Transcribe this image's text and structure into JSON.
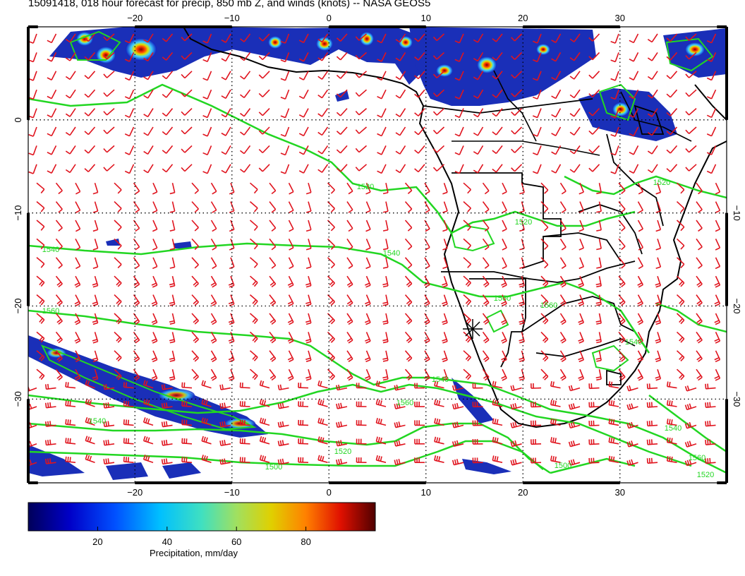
{
  "title": "15091418, 018 hour forecast for precip, 850 mb Z, and winds (knots) -- NASA GEOS5",
  "map": {
    "lon_range": [
      -31,
      41
    ],
    "lat_range": [
      -39,
      10
    ],
    "lon_ticks": [
      "−20",
      "−10",
      "0",
      "10",
      "20",
      "30"
    ],
    "lat_ticks_left": [
      "0",
      "−10",
      "−20",
      "−30"
    ],
    "lat_ticks_right": [
      "−10",
      "−20",
      "−30"
    ],
    "top_tick_labels": [
      "−20",
      "−10",
      "0",
      "10",
      "20",
      "30"
    ],
    "marker": "asterisk-station-marker",
    "contour_color": "#22d622",
    "barb_color": "#e0141e",
    "coast_color": "#000000",
    "contour_labels": [
      "1520",
      "1520",
      "1540",
      "1540",
      "1560",
      "1560",
      "1540",
      "1560",
      "1540",
      "1540",
      "1520",
      "1500",
      "1500",
      "1540",
      "1560",
      "1560",
      "1520",
      "1520"
    ]
  },
  "colorbar": {
    "ticks": [
      "20",
      "40",
      "60",
      "80"
    ],
    "label": "Precipitation, mm/day",
    "range": [
      0,
      100
    ],
    "colors": [
      "#00008b",
      "#0000ff",
      "#0080ff",
      "#00d0ff",
      "#40e0d0",
      "#80e070",
      "#d0d000",
      "#ff9000",
      "#ff2000",
      "#c00000",
      "#600000"
    ]
  }
}
